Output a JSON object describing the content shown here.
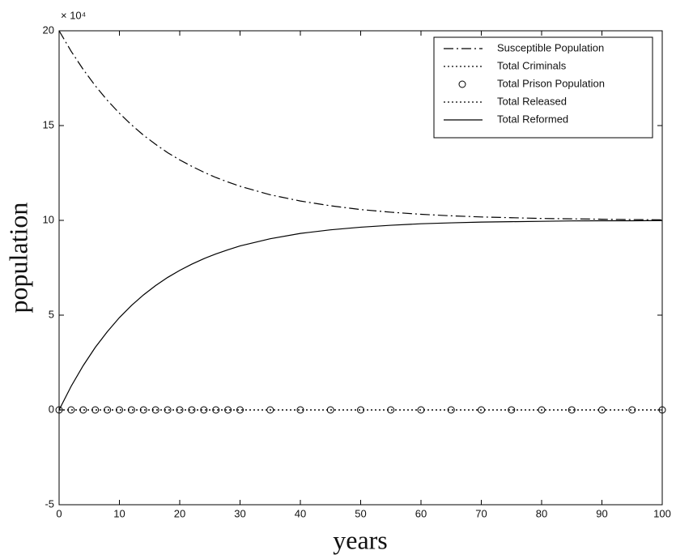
{
  "chart_data": {
    "type": "line",
    "x_label": "years",
    "y_label": "population",
    "y_multiplier": "× 10⁴",
    "x": [
      0,
      2,
      4,
      6,
      8,
      10,
      12,
      14,
      16,
      18,
      20,
      22,
      24,
      26,
      28,
      30,
      35,
      40,
      45,
      50,
      55,
      60,
      65,
      70,
      75,
      80,
      85,
      90,
      95,
      100
    ],
    "series": [
      {
        "name": "Susceptible Population",
        "color": "#000000",
        "style": "dashdot",
        "values": [
          20,
          18.92,
          17.96,
          17.1,
          16.33,
          15.65,
          15.04,
          14.49,
          14.01,
          13.57,
          13.19,
          12.85,
          12.54,
          12.26,
          12.02,
          11.8,
          11.35,
          11.02,
          10.77,
          10.57,
          10.43,
          10.32,
          10.24,
          10.18,
          10.14,
          10.1,
          10.08,
          10.06,
          10.04,
          10.03
        ]
      },
      {
        "name": "Total Criminals",
        "color": "#000000",
        "style": "dotted",
        "values": [
          0,
          0,
          0,
          0,
          0,
          0,
          0,
          0,
          0,
          0,
          0,
          0,
          0,
          0,
          0,
          0,
          0,
          0,
          0,
          0,
          0,
          0,
          0,
          0,
          0,
          0,
          0,
          0,
          0,
          0
        ]
      },
      {
        "name": "Total Prison Population",
        "color": "#000000",
        "style": "circle",
        "values": [
          0,
          0,
          0,
          0,
          0,
          0,
          0,
          0,
          0,
          0,
          0,
          0,
          0,
          0,
          0,
          0,
          0,
          0,
          0,
          0,
          0,
          0,
          0,
          0,
          0,
          0,
          0,
          0,
          0,
          0
        ]
      },
      {
        "name": "Total Released",
        "color": "#000000",
        "style": "dotted",
        "values": [
          0,
          0,
          0,
          0,
          0,
          0,
          0,
          0,
          0,
          0,
          0,
          0,
          0,
          0,
          0,
          0,
          0,
          0,
          0,
          0,
          0,
          0,
          0,
          0,
          0,
          0,
          0,
          0,
          0,
          0
        ]
      },
      {
        "name": "Total Reformed",
        "color": "#000000",
        "style": "solid",
        "values": [
          0,
          1.25,
          2.34,
          3.3,
          4.13,
          4.87,
          5.51,
          6.07,
          6.56,
          6.99,
          7.36,
          7.69,
          7.98,
          8.23,
          8.45,
          8.65,
          9.03,
          9.31,
          9.5,
          9.64,
          9.74,
          9.82,
          9.87,
          9.91,
          9.93,
          9.95,
          9.97,
          9.98,
          9.98,
          9.99
        ]
      }
    ],
    "xlim": [
      0,
      100
    ],
    "xticks": [
      0,
      10,
      20,
      30,
      40,
      50,
      60,
      70,
      80,
      90,
      100
    ],
    "ylim": [
      -5,
      20
    ],
    "yticks": [
      -5,
      0,
      5,
      10,
      15,
      20
    ],
    "legend": "upper-right"
  }
}
